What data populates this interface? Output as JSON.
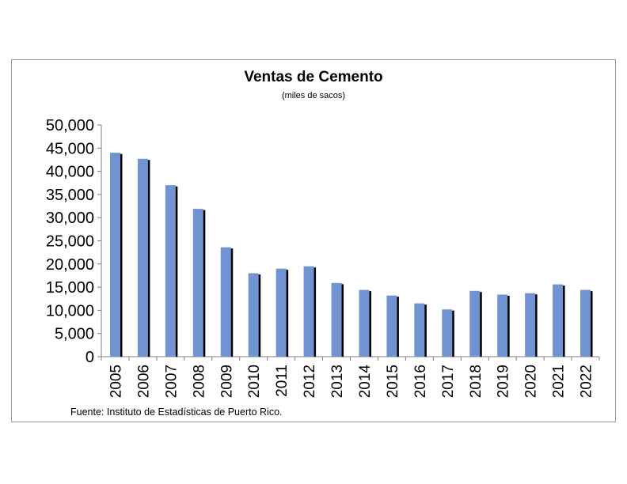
{
  "chart_data": {
    "type": "bar",
    "title": "Ventas de Cemento",
    "subtitle": "(miles de sacos)",
    "xlabel": "",
    "ylabel": "",
    "categories": [
      "2005",
      "2006",
      "2007",
      "2008",
      "2009",
      "2010",
      "2011",
      "2012",
      "2013",
      "2014",
      "2015",
      "2016",
      "2017",
      "2018",
      "2019",
      "2020",
      "2021",
      "2022"
    ],
    "values": [
      44000,
      42700,
      37000,
      31900,
      23600,
      18000,
      19000,
      19500,
      15900,
      14400,
      13200,
      11500,
      10200,
      14200,
      13400,
      13700,
      15600,
      14400
    ],
    "ylim": [
      0,
      50000
    ],
    "yticks": [
      "0",
      "5,000",
      "10,000",
      "15,000",
      "20,000",
      "25,000",
      "30,000",
      "35,000",
      "40,000",
      "45,000",
      "50,000"
    ],
    "grid": false,
    "legend": "none",
    "bar_color": "#7293D2",
    "bar_shadow_color": "#000000"
  },
  "footer": {
    "source": "Fuente: Instituto de Estadísticas de Puerto Rico."
  }
}
